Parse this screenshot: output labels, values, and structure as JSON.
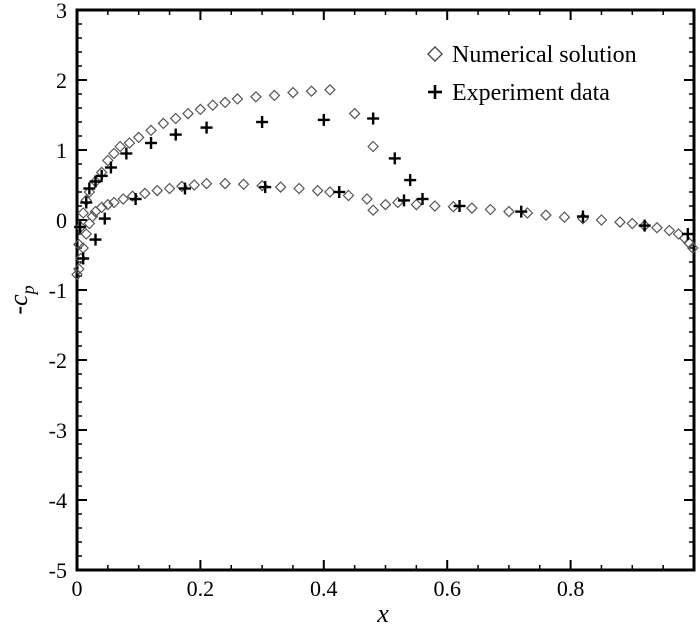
{
  "chart_data": {
    "type": "scatter",
    "title": "",
    "xlabel": "x",
    "ylabel": "-c",
    "ylabel_subscript": "p",
    "xlim": [
      0,
      1
    ],
    "ylim": [
      -5,
      3
    ],
    "x_ticks": [
      0,
      0.2,
      0.4,
      0.6,
      0.8
    ],
    "x_tick_labels": [
      "0",
      "0.2",
      "0.4",
      "0.6",
      "0.8"
    ],
    "y_ticks": [
      -5,
      -4,
      -3,
      -2,
      -1,
      0,
      1,
      2,
      3
    ],
    "y_tick_labels": [
      "-5",
      "-4",
      "-3",
      "-2",
      "-1",
      "0",
      "1",
      "2",
      "3"
    ],
    "grid": false,
    "legend_position": "top-right",
    "series": [
      {
        "name": "Numerical solution",
        "marker": "diamond-open",
        "color": "#555555",
        "points": [
          [
            0.0,
            -0.78
          ],
          [
            0.003,
            -0.7
          ],
          [
            0.006,
            -0.55
          ],
          [
            0.01,
            -0.4
          ],
          [
            0.015,
            -0.2
          ],
          [
            0.02,
            -0.05
          ],
          [
            0.025,
            0.05
          ],
          [
            0.03,
            0.12
          ],
          [
            0.04,
            0.18
          ],
          [
            0.05,
            0.22
          ],
          [
            0.06,
            0.25
          ],
          [
            0.075,
            0.3
          ],
          [
            0.09,
            0.34
          ],
          [
            0.11,
            0.38
          ],
          [
            0.13,
            0.42
          ],
          [
            0.15,
            0.45
          ],
          [
            0.17,
            0.48
          ],
          [
            0.19,
            0.5
          ],
          [
            0.21,
            0.52
          ],
          [
            0.24,
            0.52
          ],
          [
            0.27,
            0.51
          ],
          [
            0.3,
            0.49
          ],
          [
            0.33,
            0.47
          ],
          [
            0.36,
            0.45
          ],
          [
            0.39,
            0.42
          ],
          [
            0.41,
            0.4
          ],
          [
            0.44,
            0.35
          ],
          [
            0.47,
            0.3
          ],
          [
            0.48,
            0.14
          ],
          [
            0.5,
            0.22
          ],
          [
            0.52,
            0.25
          ],
          [
            0.55,
            0.22
          ],
          [
            0.58,
            0.2
          ],
          [
            0.61,
            0.19
          ],
          [
            0.64,
            0.17
          ],
          [
            0.67,
            0.15
          ],
          [
            0.7,
            0.12
          ],
          [
            0.73,
            0.1
          ],
          [
            0.76,
            0.07
          ],
          [
            0.79,
            0.04
          ],
          [
            0.82,
            0.02
          ],
          [
            0.85,
            0.0
          ],
          [
            0.88,
            -0.03
          ],
          [
            0.9,
            -0.05
          ],
          [
            0.92,
            -0.08
          ],
          [
            0.94,
            -0.11
          ],
          [
            0.96,
            -0.15
          ],
          [
            0.975,
            -0.2
          ],
          [
            0.985,
            -0.26
          ],
          [
            0.992,
            -0.33
          ],
          [
            0.998,
            -0.4
          ],
          [
            0.003,
            -0.35
          ],
          [
            0.006,
            -0.1
          ],
          [
            0.01,
            0.1
          ],
          [
            0.015,
            0.28
          ],
          [
            0.02,
            0.4
          ],
          [
            0.03,
            0.55
          ],
          [
            0.04,
            0.68
          ],
          [
            0.05,
            0.85
          ],
          [
            0.06,
            0.95
          ],
          [
            0.07,
            1.05
          ],
          [
            0.085,
            1.1
          ],
          [
            0.1,
            1.18
          ],
          [
            0.12,
            1.28
          ],
          [
            0.14,
            1.38
          ],
          [
            0.16,
            1.45
          ],
          [
            0.18,
            1.52
          ],
          [
            0.2,
            1.58
          ],
          [
            0.22,
            1.64
          ],
          [
            0.24,
            1.68
          ],
          [
            0.26,
            1.73
          ],
          [
            0.29,
            1.76
          ],
          [
            0.32,
            1.78
          ],
          [
            0.35,
            1.82
          ],
          [
            0.38,
            1.84
          ],
          [
            0.41,
            1.86
          ],
          [
            0.45,
            1.52
          ],
          [
            0.48,
            1.05
          ]
        ]
      },
      {
        "name": "Experiment data",
        "marker": "plus",
        "color": "#000000",
        "points": [
          [
            0.005,
            -0.1
          ],
          [
            0.01,
            -0.55
          ],
          [
            0.015,
            0.25
          ],
          [
            0.02,
            0.45
          ],
          [
            0.03,
            0.55
          ],
          [
            0.04,
            0.63
          ],
          [
            0.055,
            0.75
          ],
          [
            0.08,
            0.95
          ],
          [
            0.12,
            1.1
          ],
          [
            0.16,
            1.22
          ],
          [
            0.21,
            1.32
          ],
          [
            0.3,
            1.4
          ],
          [
            0.4,
            1.43
          ],
          [
            0.48,
            1.45
          ],
          [
            0.515,
            0.88
          ],
          [
            0.54,
            0.57
          ],
          [
            0.56,
            0.3
          ],
          [
            0.62,
            0.2
          ],
          [
            0.72,
            0.12
          ],
          [
            0.82,
            0.05
          ],
          [
            0.92,
            -0.08
          ],
          [
            0.99,
            -0.2
          ],
          [
            0.03,
            -0.28
          ],
          [
            0.045,
            0.02
          ],
          [
            0.095,
            0.3
          ],
          [
            0.175,
            0.45
          ],
          [
            0.305,
            0.47
          ],
          [
            0.425,
            0.4
          ],
          [
            0.53,
            0.28
          ]
        ]
      }
    ]
  }
}
